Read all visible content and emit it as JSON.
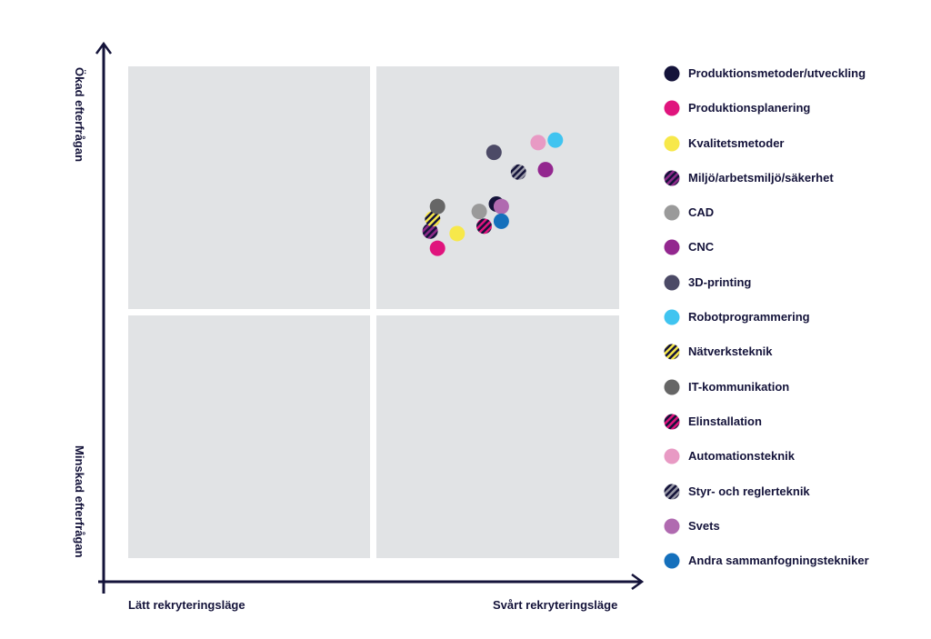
{
  "axes": {
    "x_low": "Lätt rekryteringsläge",
    "x_high": "Svårt rekryteringsläge",
    "y_high": "Ökad efterfrågan",
    "y_low": "Minskad efterfrågan"
  },
  "chart_data": {
    "type": "scatter",
    "title": "",
    "xlabel": "Lätt rekryteringsläge → Svårt rekryteringsläge",
    "ylabel": "Minskad efterfrågan → Ökad efterfrågan",
    "xlim": [
      0,
      100
    ],
    "ylim": [
      0,
      100
    ],
    "grid": "2x2 quadrants",
    "legend_position": "right",
    "series": [
      {
        "name": "Produktionsmetoder/utveckling",
        "color": "#14133a",
        "pattern": "solid",
        "x": 75,
        "y": 72
      },
      {
        "name": "Produktionsplanering",
        "color": "#e0147d",
        "pattern": "solid",
        "x": 63,
        "y": 63
      },
      {
        "name": "Kvalitetsmetoder",
        "color": "#f7e84a",
        "pattern": "solid",
        "x": 67,
        "y": 66
      },
      {
        "name": "Miljö/arbetsmiljö/säkerhet",
        "color": "#8e2a8a",
        "stripe": "#14133a",
        "pattern": "striped",
        "x": 61.5,
        "y": 66.5
      },
      {
        "name": "CAD",
        "color": "#9a9a9a",
        "pattern": "solid",
        "x": 71.5,
        "y": 70.5
      },
      {
        "name": "CNC",
        "color": "#93278f",
        "pattern": "solid",
        "x": 85,
        "y": 79
      },
      {
        "name": "3D-printing",
        "color": "#4c4a66",
        "pattern": "solid",
        "x": 74.5,
        "y": 82.5
      },
      {
        "name": "Robotprogrammering",
        "color": "#40c4f0",
        "pattern": "solid",
        "x": 87,
        "y": 85
      },
      {
        "name": "Nätverksteknik",
        "color": "#f7e84a",
        "stripe": "#14133a",
        "pattern": "striped",
        "x": 62,
        "y": 69
      },
      {
        "name": "IT-kommunikation",
        "color": "#666666",
        "pattern": "solid",
        "x": 63,
        "y": 71.5
      },
      {
        "name": "Elinstallation",
        "color": "#e0147d",
        "stripe": "#14133a",
        "pattern": "striped",
        "x": 72.5,
        "y": 67.5
      },
      {
        "name": "Automationsteknik",
        "color": "#e89ac4",
        "pattern": "solid",
        "x": 83.5,
        "y": 84.5
      },
      {
        "name": "Styr- och reglerteknik",
        "color": "#9a9aa8",
        "stripe": "#14133a",
        "pattern": "striped",
        "x": 79.5,
        "y": 78.5
      },
      {
        "name": "Svets",
        "color": "#b06ab0",
        "pattern": "solid",
        "x": 76,
        "y": 71.5
      },
      {
        "name": "Andra sammanfogningstekniker",
        "color": "#1570bc",
        "pattern": "solid",
        "x": 76,
        "y": 68.5
      }
    ]
  },
  "colors": {
    "axis": "#14133a",
    "quadrant_fill": "#e1e3e5"
  }
}
